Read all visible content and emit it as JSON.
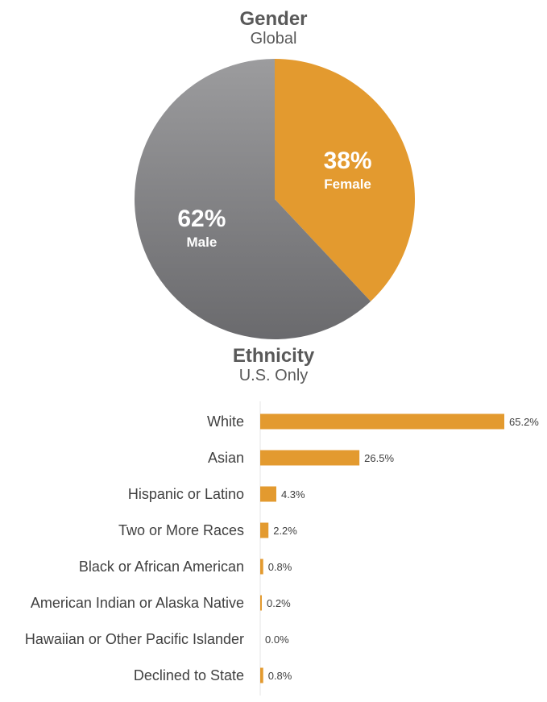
{
  "chart_data": [
    {
      "type": "pie",
      "title": "Gender",
      "subtitle": "Global",
      "slices": [
        {
          "name": "Female",
          "value": 38,
          "label": "38%",
          "color": "#E39A2F"
        },
        {
          "name": "Male",
          "value": 62,
          "label": "62%",
          "color": "#7A7A7C"
        }
      ]
    },
    {
      "type": "bar",
      "orientation": "horizontal",
      "title": "Ethnicity",
      "subtitle": "U.S. Only",
      "color": "#E39A2F",
      "categories": [
        "White",
        "Asian",
        "Hispanic or Latino",
        "Two or More Races",
        "Black or African American",
        "American Indian or Alaska Native",
        "Hawaiian or Other Pacific Islander",
        "Declined to State"
      ],
      "values": [
        65.2,
        26.5,
        4.3,
        2.2,
        0.8,
        0.2,
        0.0,
        0.8
      ],
      "value_labels": [
        "65.2%",
        "26.5%",
        "4.3%",
        "2.2%",
        "0.8%",
        "0.2%",
        "0.0%",
        "0.8%"
      ],
      "xlim": [
        0,
        65.2
      ]
    }
  ]
}
